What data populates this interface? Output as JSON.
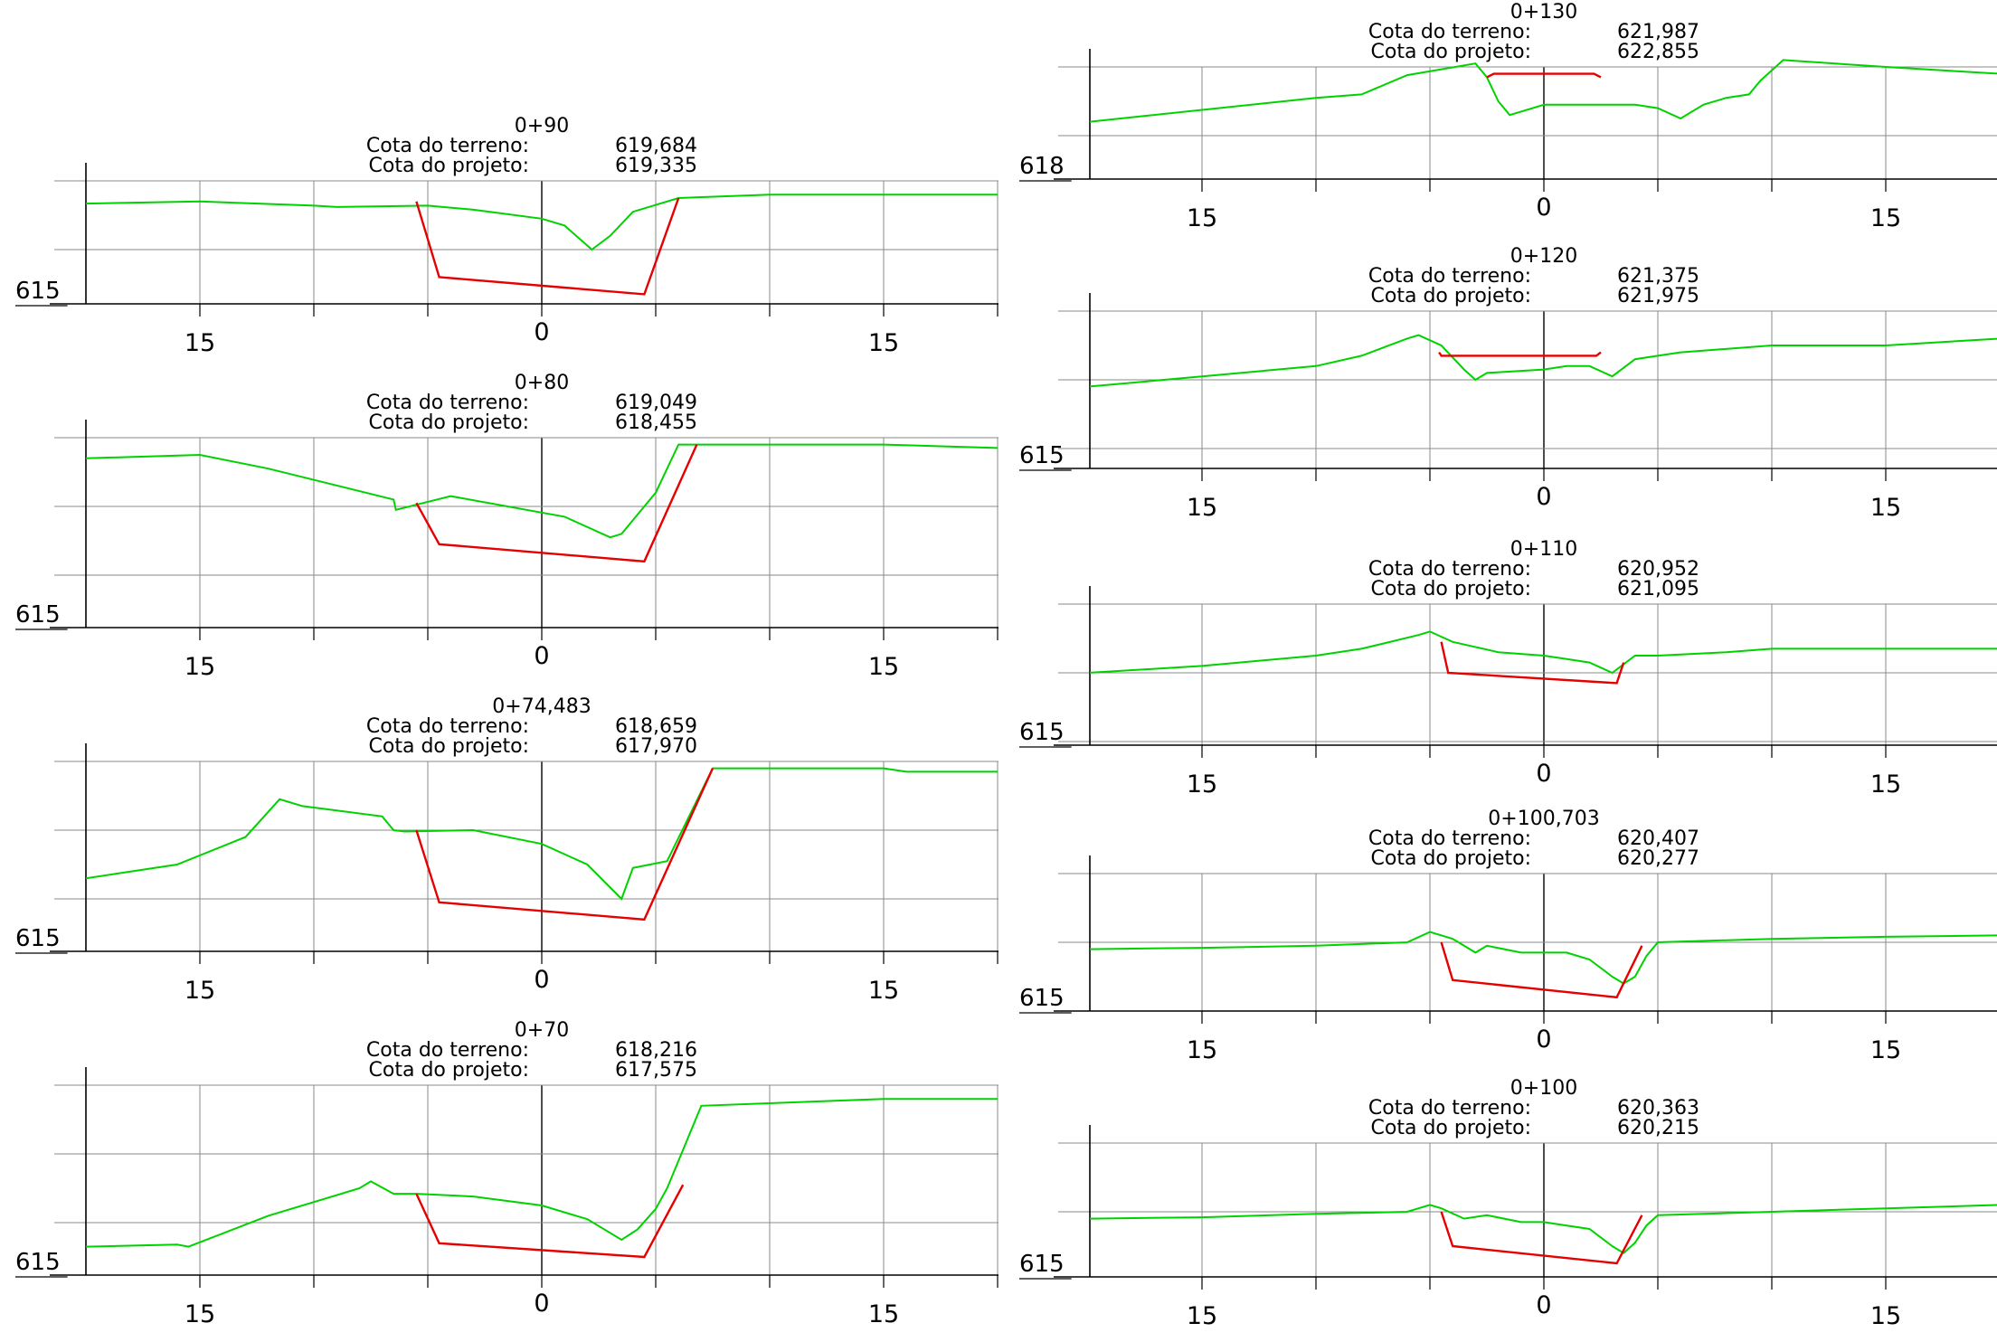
{
  "colors": {
    "terrain": "#00d200",
    "design": "#e60000",
    "grid": "#888888",
    "frame": "#000000",
    "text": "#000000"
  },
  "sections": [
    {
      "id": "s-0-90",
      "station": "0+90",
      "terrain_label": "Cota do terreno:",
      "terrain_value": "619,684",
      "design_label": "Cota do projeto:",
      "design_value": "619,335",
      "ref_label": "615",
      "left_label": "15",
      "center_label": "0",
      "right_label": "15",
      "terrain": [
        [
          -20,
          618.67
        ],
        [
          -15,
          618.7
        ],
        [
          -10,
          618.64
        ],
        [
          -9,
          618.62
        ],
        [
          -5,
          618.64
        ],
        [
          -3,
          618.58
        ],
        [
          0,
          618.45
        ],
        [
          1,
          618.35
        ],
        [
          2.2,
          618.0
        ],
        [
          3,
          618.2
        ],
        [
          4,
          618.55
        ],
        [
          6,
          618.75
        ],
        [
          10,
          618.8
        ],
        [
          15,
          618.8
        ],
        [
          20,
          618.8
        ]
      ],
      "design": [
        [
          -5.5,
          618.7
        ],
        [
          -4.5,
          617.6
        ],
        [
          4.5,
          617.35
        ],
        [
          6,
          618.75
        ]
      ]
    },
    {
      "id": "s-0-80",
      "station": "0+80",
      "terrain_label": "Cota do terreno:",
      "terrain_value": "619,049",
      "design_label": "Cota do projeto:",
      "design_value": "618,455",
      "ref_label": "615",
      "left_label": "15",
      "center_label": "0",
      "right_label": "15",
      "terrain": [
        [
          -20,
          616.7
        ],
        [
          -15,
          616.75
        ],
        [
          -12,
          616.55
        ],
        [
          -6.5,
          616.1
        ],
        [
          -6.4,
          615.95
        ],
        [
          -4,
          616.15
        ],
        [
          1,
          615.85
        ],
        [
          3,
          615.55
        ],
        [
          3.5,
          615.6
        ],
        [
          4.5,
          616.0
        ],
        [
          5,
          616.2
        ],
        [
          6,
          616.9
        ],
        [
          10,
          616.9
        ],
        [
          15,
          616.9
        ],
        [
          20,
          616.85
        ]
      ],
      "design": [
        [
          -5.5,
          616.05
        ],
        [
          -4.5,
          615.45
        ],
        [
          4.5,
          615.2
        ],
        [
          6.8,
          616.9
        ]
      ]
    },
    {
      "id": "s-0-74483",
      "station": "0+74,483",
      "terrain_label": "Cota do terreno:",
      "terrain_value": "618,659",
      "design_label": "Cota do projeto:",
      "design_value": "617,970",
      "ref_label": "615",
      "left_label": "15",
      "center_label": "0",
      "right_label": "15",
      "terrain": [
        [
          -20,
          616.3
        ],
        [
          -16,
          616.5
        ],
        [
          -13,
          616.9
        ],
        [
          -11.5,
          617.45
        ],
        [
          -10.5,
          617.35
        ],
        [
          -7,
          617.2
        ],
        [
          -6.5,
          617.0
        ],
        [
          -6,
          616.98
        ],
        [
          -3,
          617.0
        ],
        [
          0,
          616.8
        ],
        [
          2,
          616.5
        ],
        [
          3.5,
          616.0
        ],
        [
          4,
          616.45
        ],
        [
          5.5,
          616.55
        ],
        [
          7.5,
          617.9
        ],
        [
          15,
          617.9
        ],
        [
          16,
          617.85
        ],
        [
          20,
          617.85
        ]
      ],
      "design": [
        [
          -5.5,
          617.0
        ],
        [
          -4.5,
          615.95
        ],
        [
          4.5,
          615.7
        ],
        [
          7.5,
          617.9
        ]
      ]
    },
    {
      "id": "s-0-70",
      "station": "0+70",
      "terrain_label": "Cota do terreno:",
      "terrain_value": "618,216",
      "design_label": "Cota do projeto:",
      "design_value": "617,575",
      "ref_label": "615",
      "left_label": "15",
      "center_label": "0",
      "right_label": "15",
      "terrain": [
        [
          -20,
          616.65
        ],
        [
          -16,
          616.68
        ],
        [
          -15.5,
          616.65
        ],
        [
          -12,
          617.1
        ],
        [
          -8,
          617.5
        ],
        [
          -7.5,
          617.6
        ],
        [
          -6.5,
          617.42
        ],
        [
          -5.5,
          617.42
        ],
        [
          -3,
          617.38
        ],
        [
          0,
          617.25
        ],
        [
          2,
          617.05
        ],
        [
          3.5,
          616.75
        ],
        [
          4.2,
          616.9
        ],
        [
          5,
          617.2
        ],
        [
          5.5,
          617.5
        ],
        [
          7,
          618.7
        ],
        [
          15,
          618.8
        ],
        [
          20,
          618.8
        ]
      ],
      "design": [
        [
          -5.5,
          617.42
        ],
        [
          -4.5,
          616.7
        ],
        [
          4.5,
          616.5
        ],
        [
          6.2,
          617.55
        ]
      ]
    },
    {
      "id": "s-0-130",
      "station": "0+130",
      "terrain_label": "Cota do terreno:",
      "terrain_value": "621,987",
      "design_label": "Cota do projeto:",
      "design_value": "622,855",
      "ref_label": "618",
      "left_label": "15",
      "center_label": "0",
      "right_label": "15",
      "terrain": [
        [
          -20,
          621.2
        ],
        [
          -10,
          621.55
        ],
        [
          -8,
          621.6
        ],
        [
          -6,
          621.88
        ],
        [
          -3,
          622.05
        ],
        [
          -2.5,
          621.85
        ],
        [
          -2,
          621.5
        ],
        [
          -1.5,
          621.3
        ],
        [
          -1,
          621.35
        ],
        [
          0,
          621.45
        ],
        [
          1,
          621.45
        ],
        [
          4,
          621.45
        ],
        [
          5,
          621.4
        ],
        [
          6,
          621.25
        ],
        [
          7,
          621.45
        ],
        [
          8,
          621.55
        ],
        [
          9,
          621.6
        ],
        [
          9.5,
          621.8
        ],
        [
          10.5,
          622.1
        ],
        [
          15,
          622.0
        ],
        [
          20,
          621.9
        ]
      ],
      "design": [
        [
          -2.5,
          621.85
        ],
        [
          -2.2,
          621.9
        ],
        [
          2.2,
          621.9
        ],
        [
          2.5,
          621.85
        ]
      ]
    },
    {
      "id": "s-0-120",
      "station": "0+120",
      "terrain_label": "Cota do terreno:",
      "terrain_value": "621,375",
      "design_label": "Cota do projeto:",
      "design_value": "621,975",
      "ref_label": "615",
      "left_label": "15",
      "center_label": "0",
      "right_label": "15",
      "terrain": [
        [
          -20,
          616.9
        ],
        [
          -15,
          617.05
        ],
        [
          -10,
          617.2
        ],
        [
          -8,
          617.35
        ],
        [
          -6,
          617.6
        ],
        [
          -5.5,
          617.65
        ],
        [
          -4.5,
          617.5
        ],
        [
          -3.5,
          617.15
        ],
        [
          -3,
          617.0
        ],
        [
          -2.5,
          617.1
        ],
        [
          0,
          617.15
        ],
        [
          1,
          617.2
        ],
        [
          2,
          617.2
        ],
        [
          3,
          617.05
        ],
        [
          4,
          617.3
        ],
        [
          5,
          617.35
        ],
        [
          6,
          617.4
        ],
        [
          10,
          617.5
        ],
        [
          15,
          617.5
        ],
        [
          20,
          617.6
        ]
      ],
      "design": [
        [
          -4.6,
          617.4
        ],
        [
          -4.5,
          617.35
        ],
        [
          2.3,
          617.35
        ],
        [
          2.5,
          617.4
        ]
      ]
    },
    {
      "id": "s-0-110",
      "station": "0+110",
      "terrain_label": "Cota do terreno:",
      "terrain_value": "620,952",
      "design_label": "Cota do projeto:",
      "design_value": "621,095",
      "ref_label": "615",
      "left_label": "15",
      "center_label": "0",
      "right_label": "15",
      "terrain": [
        [
          -20,
          617.0
        ],
        [
          -15,
          617.1
        ],
        [
          -10,
          617.25
        ],
        [
          -8,
          617.35
        ],
        [
          -5.5,
          617.55
        ],
        [
          -5,
          617.6
        ],
        [
          -4,
          617.45
        ],
        [
          -2,
          617.3
        ],
        [
          0,
          617.25
        ],
        [
          1,
          617.2
        ],
        [
          2,
          617.15
        ],
        [
          3,
          617.0
        ],
        [
          4,
          617.25
        ],
        [
          5,
          617.25
        ],
        [
          8,
          617.3
        ],
        [
          10,
          617.35
        ],
        [
          15,
          617.35
        ],
        [
          20,
          617.35
        ]
      ],
      "design": [
        [
          -4.5,
          617.45
        ],
        [
          -4.2,
          617.0
        ],
        [
          3.2,
          616.85
        ],
        [
          3.5,
          617.15
        ]
      ]
    },
    {
      "id": "s-0-100703",
      "station": "0+100,703",
      "terrain_label": "Cota do terreno:",
      "terrain_value": "620,407",
      "design_label": "Cota do projeto:",
      "design_value": "620,277",
      "ref_label": "615",
      "left_label": "15",
      "center_label": "0",
      "right_label": "15",
      "terrain": [
        [
          -20,
          616.9
        ],
        [
          -15,
          616.92
        ],
        [
          -10,
          616.95
        ],
        [
          -6,
          617.0
        ],
        [
          -5,
          617.15
        ],
        [
          -4,
          617.05
        ],
        [
          -3,
          616.85
        ],
        [
          -2.5,
          616.95
        ],
        [
          -1,
          616.85
        ],
        [
          0,
          616.85
        ],
        [
          1,
          616.85
        ],
        [
          2,
          616.75
        ],
        [
          3,
          616.5
        ],
        [
          3.5,
          616.4
        ],
        [
          4,
          616.5
        ],
        [
          4.5,
          616.8
        ],
        [
          5,
          617.0
        ],
        [
          10,
          617.05
        ],
        [
          15,
          617.08
        ],
        [
          20,
          617.1
        ]
      ],
      "design": [
        [
          -4.5,
          617.0
        ],
        [
          -4.0,
          616.45
        ],
        [
          3.2,
          616.2
        ],
        [
          4.3,
          616.95
        ]
      ]
    },
    {
      "id": "s-0-100",
      "station": "0+100",
      "terrain_label": "Cota do terreno:",
      "terrain_value": "620,363",
      "design_label": "Cota do projeto:",
      "design_value": "620,215",
      "ref_label": "615",
      "left_label": "15",
      "center_label": "0",
      "right_label": "15",
      "terrain": [
        [
          -20,
          616.9
        ],
        [
          -15,
          616.92
        ],
        [
          -10,
          616.97
        ],
        [
          -6,
          617.0
        ],
        [
          -5,
          617.1
        ],
        [
          -4.5,
          617.05
        ],
        [
          -3.5,
          616.9
        ],
        [
          -2.5,
          616.95
        ],
        [
          -1,
          616.85
        ],
        [
          0,
          616.85
        ],
        [
          1,
          616.8
        ],
        [
          2,
          616.75
        ],
        [
          3,
          616.5
        ],
        [
          3.5,
          616.4
        ],
        [
          4,
          616.55
        ],
        [
          4.5,
          616.8
        ],
        [
          5,
          616.95
        ],
        [
          10,
          617.0
        ],
        [
          15,
          617.05
        ],
        [
          20,
          617.1
        ]
      ],
      "design": [
        [
          -4.5,
          617.0
        ],
        [
          -4.0,
          616.5
        ],
        [
          3.2,
          616.25
        ],
        [
          4.3,
          616.95
        ]
      ]
    }
  ]
}
